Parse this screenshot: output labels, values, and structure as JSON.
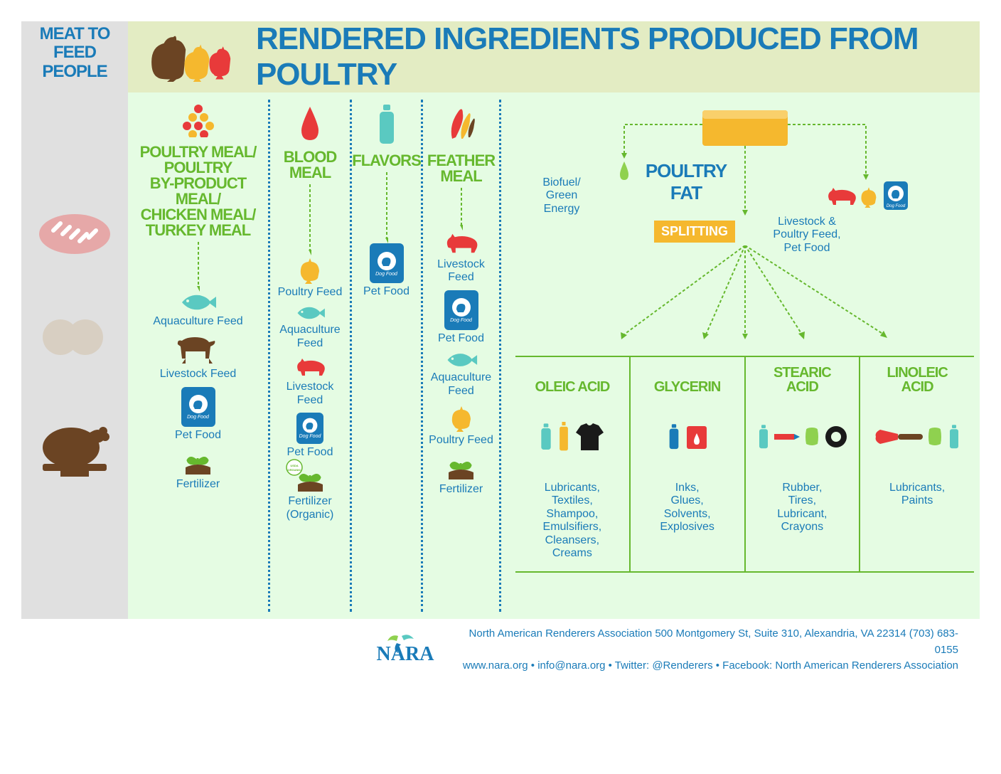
{
  "colors": {
    "blue": "#1a7bb8",
    "green": "#66b82e",
    "lightgreen_bg": "#e5fce3",
    "header_bg": "#e3ecc3",
    "sidebar_bg": "#e0e0e0",
    "orange": "#f5b82e",
    "red": "#e83a3a",
    "brown": "#6b4423",
    "teal": "#5ac9c1",
    "yellow": "#f5b82e",
    "darkred": "#9c2a2a",
    "lightgreen": "#8fd14f"
  },
  "sidebar": {
    "title": "MEAT TO\nFEED PEOPLE"
  },
  "header": {
    "title": "RENDERED INGREDIENTS PRODUCED FROM POULTRY"
  },
  "columns": {
    "poultry_meal": {
      "title": "POULTRY MEAL/\nPOULTRY\nBY-PRODUCT MEAL/\nCHICKEN MEAL/\nTURKEY MEAL",
      "items": [
        "Aquaculture Feed",
        "Livestock Feed",
        "Pet Food",
        "Fertilizer"
      ]
    },
    "blood_meal": {
      "title": "BLOOD\nMEAL",
      "items": [
        "Poultry Feed",
        "Aquaculture Feed",
        "Livestock Feed",
        "Pet Food",
        "Fertilizer\n(Organic)"
      ]
    },
    "flavors": {
      "title": "FLAVORS",
      "items": [
        "Pet Food"
      ]
    },
    "feather_meal": {
      "title": "FEATHER\nMEAL",
      "items": [
        "Livestock Feed",
        "Pet Food",
        "Aquaculture Feed",
        "Poultry Feed",
        "Fertilizer"
      ]
    },
    "poultry_fat": {
      "title": "POULTRY FAT",
      "biofuel": "Biofuel/\nGreen Energy",
      "livestock": "Livestock &\nPoultry Feed,\nPet Food",
      "splitting": "SPLITTING",
      "acids": [
        {
          "title": "OLEIC ACID",
          "text": "Lubricants,\nTextiles,\nShampoo,\nEmulsifiers,\nCleansers,\nCreams"
        },
        {
          "title": "GLYCERIN",
          "text": "Inks,\nGlues,\nSolvents,\nExplosives"
        },
        {
          "title": "STEARIC\nACID",
          "text": "Rubber,\nTires,\nLubricant,\nCrayons"
        },
        {
          "title": "LINOLEIC\nACID",
          "text": "Lubricants,\nPaints"
        }
      ]
    }
  },
  "footer": {
    "org": "North American Renderers Association  500 Montgomery St, Suite 310, Alexandria, VA 22314 (703) 683-0155",
    "links": "www.nara.org • info@nara.org • Twitter: @Renderers • Facebook: North American Renderers Association",
    "logo": "NARA"
  }
}
